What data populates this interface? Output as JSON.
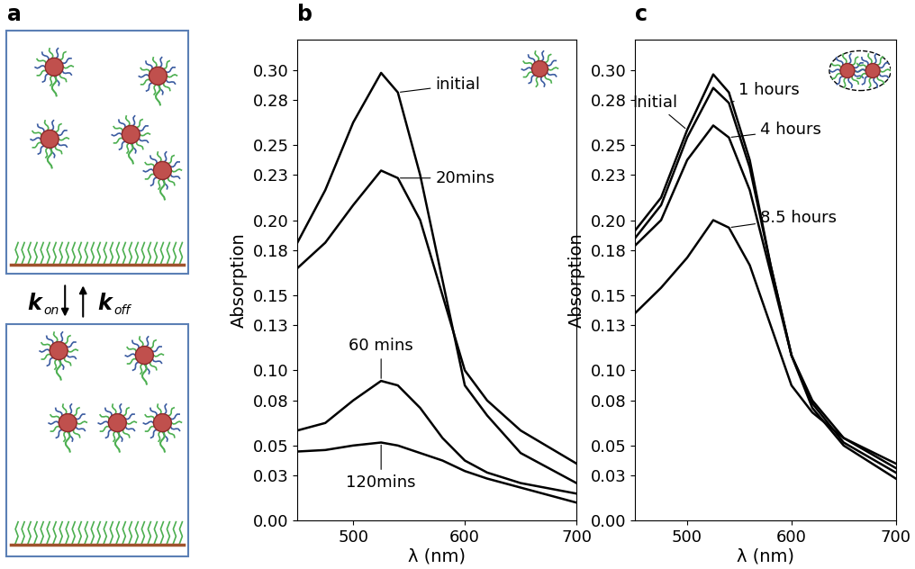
{
  "diagram": {
    "panel": "a",
    "rates": [
      {
        "symbol": "k",
        "subscript": "on"
      },
      {
        "symbol": "k",
        "subscript": "off"
      }
    ]
  },
  "chart_data": [
    {
      "type": "line",
      "panel": "b",
      "x_label": "λ (nm)",
      "y_label": "Absorption",
      "xlim": [
        450,
        700
      ],
      "xticks": [
        500,
        600,
        700
      ],
      "ylim": [
        0,
        0.32
      ],
      "yticks": [
        {
          "value": 0.0,
          "label": "0.00"
        },
        {
          "value": 0.03,
          "label": "0.03"
        },
        {
          "value": 0.05,
          "label": "0.05"
        },
        {
          "value": 0.08,
          "label": "0.08"
        },
        {
          "value": 0.1,
          "label": "0.10"
        },
        {
          "value": 0.13,
          "label": "0.13"
        },
        {
          "value": 0.15,
          "label": "0.15"
        },
        {
          "value": 0.18,
          "label": "0.18"
        },
        {
          "value": 0.2,
          "label": "0.20"
        },
        {
          "value": 0.23,
          "label": "0.23"
        },
        {
          "value": 0.25,
          "label": "0.25"
        },
        {
          "value": 0.28,
          "label": "0.28"
        },
        {
          "value": 0.3,
          "label": "0.30"
        }
      ],
      "x": [
        450,
        475,
        500,
        525,
        540,
        560,
        580,
        600,
        620,
        650,
        700
      ],
      "series": [
        {
          "name": "initial",
          "color": "#000000",
          "values": [
            0.185,
            0.22,
            0.265,
            0.298,
            0.285,
            0.23,
            0.16,
            0.09,
            0.07,
            0.045,
            0.025
          ]
        },
        {
          "name": "20mins",
          "color": "#000000",
          "values": [
            0.168,
            0.185,
            0.21,
            0.233,
            0.228,
            0.2,
            0.15,
            0.1,
            0.08,
            0.06,
            0.038
          ]
        },
        {
          "name": "60 mins",
          "color": "#000000",
          "values": [
            0.06,
            0.065,
            0.08,
            0.093,
            0.09,
            0.075,
            0.055,
            0.04,
            0.032,
            0.025,
            0.018
          ]
        },
        {
          "name": "120mins",
          "color": "#000000",
          "values": [
            0.046,
            0.047,
            0.05,
            0.052,
            0.05,
            0.045,
            0.04,
            0.033,
            0.028,
            0.022,
            0.012
          ]
        }
      ]
    },
    {
      "type": "line",
      "panel": "c",
      "x_label": "λ (nm)",
      "y_label": "Absorption",
      "xlim": [
        450,
        700
      ],
      "xticks": [
        500,
        600,
        700
      ],
      "ylim": [
        0,
        0.32
      ],
      "yticks": [
        {
          "value": 0.0,
          "label": "0.00"
        },
        {
          "value": 0.03,
          "label": "0.03"
        },
        {
          "value": 0.05,
          "label": "0.05"
        },
        {
          "value": 0.08,
          "label": "0.08"
        },
        {
          "value": 0.1,
          "label": "0.10"
        },
        {
          "value": 0.13,
          "label": "0.13"
        },
        {
          "value": 0.15,
          "label": "0.15"
        },
        {
          "value": 0.18,
          "label": "0.18"
        },
        {
          "value": 0.2,
          "label": "0.20"
        },
        {
          "value": 0.23,
          "label": "0.23"
        },
        {
          "value": 0.25,
          "label": "0.25"
        },
        {
          "value": 0.28,
          "label": "0.28"
        },
        {
          "value": 0.3,
          "label": "0.30"
        }
      ],
      "x": [
        450,
        475,
        500,
        525,
        540,
        560,
        580,
        600,
        620,
        650,
        700
      ],
      "series": [
        {
          "name": "Initial",
          "color": "#000000",
          "values": [
            0.193,
            0.215,
            0.26,
            0.297,
            0.285,
            0.24,
            0.17,
            0.11,
            0.075,
            0.05,
            0.028
          ]
        },
        {
          "name": "1 hours",
          "color": "#000000",
          "values": [
            0.188,
            0.21,
            0.255,
            0.288,
            0.278,
            0.235,
            0.17,
            0.11,
            0.078,
            0.052,
            0.032
          ]
        },
        {
          "name": "4 hours",
          "color": "#000000",
          "values": [
            0.183,
            0.2,
            0.24,
            0.263,
            0.255,
            0.22,
            0.165,
            0.11,
            0.08,
            0.055,
            0.035
          ]
        },
        {
          "name": "8.5 hours",
          "color": "#000000",
          "values": [
            0.138,
            0.155,
            0.175,
            0.2,
            0.195,
            0.17,
            0.13,
            0.09,
            0.072,
            0.055,
            0.038
          ]
        }
      ]
    }
  ]
}
